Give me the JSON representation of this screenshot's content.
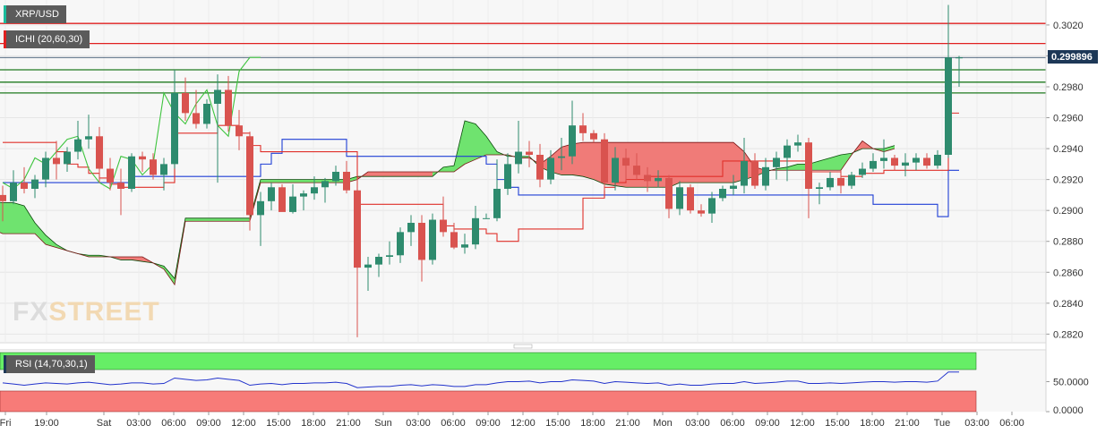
{
  "chart_data": {
    "type": "candlestick",
    "symbol": "XRP/USD",
    "indicator_label": "ICHI (20,60,30)",
    "rsi_label": "RSI (14,70,30,1)",
    "last_price_label": "0.299896",
    "last_price": 0.299896,
    "ylim": [
      0.2815,
      0.3035
    ],
    "y_ticks": [
      "0.3020",
      "0.3000",
      "0.2980",
      "0.2960",
      "0.2940",
      "0.2920",
      "0.2900",
      "0.2880",
      "0.2860",
      "0.2840",
      "0.2820"
    ],
    "rsi_ylim": [
      0,
      100
    ],
    "rsi_ticks": [
      {
        "label": "50.0000",
        "value": 50
      },
      {
        "label": "0.0000",
        "value": 0
      }
    ],
    "x_ticks": [
      "Fri",
      "19:00",
      "Sat",
      "03:00",
      "06:00",
      "09:00",
      "12:00",
      "15:00",
      "18:00",
      "21:00",
      "Sun",
      "03:00",
      "06:00",
      "09:00",
      "12:00",
      "15:00",
      "18:00",
      "21:00",
      "Mon",
      "03:00",
      "06:00",
      "09:00",
      "12:00",
      "15:00",
      "18:00",
      "21:00",
      "Tue",
      "03:00",
      "06:00"
    ],
    "horizontal_levels": {
      "resistance_red": [
        0.3021,
        0.3008
      ],
      "support_green": [
        0.2991,
        0.2983,
        0.2976
      ]
    },
    "colors": {
      "up": "#2e8b6e",
      "down": "#d9534f",
      "tenkan": "#e0302a",
      "kijun": "#1f3fd6",
      "chikou": "#3ec43e",
      "cloud_up": "#6fe36f",
      "cloud_down": "#f07b78",
      "level_red": "#e02020",
      "level_green": "#1f7a1f",
      "rsi_line": "#2233cc",
      "rsi_top": "#66ee66",
      "rsi_bottom": "#f77b78",
      "price_tag": "#1d3857"
    },
    "candles": [
      {
        "o": 0.291,
        "h": 0.2916,
        "l": 0.2893,
        "c": 0.2906
      },
      {
        "o": 0.2906,
        "h": 0.2926,
        "l": 0.2904,
        "c": 0.2918
      },
      {
        "o": 0.2918,
        "h": 0.2928,
        "l": 0.2911,
        "c": 0.2914
      },
      {
        "o": 0.2914,
        "h": 0.2923,
        "l": 0.2908,
        "c": 0.292
      },
      {
        "o": 0.292,
        "h": 0.2938,
        "l": 0.2915,
        "c": 0.2934
      },
      {
        "o": 0.2934,
        "h": 0.2945,
        "l": 0.292,
        "c": 0.293
      },
      {
        "o": 0.293,
        "h": 0.2941,
        "l": 0.2925,
        "c": 0.2938
      },
      {
        "o": 0.2938,
        "h": 0.2958,
        "l": 0.2933,
        "c": 0.2946
      },
      {
        "o": 0.2946,
        "h": 0.2962,
        "l": 0.294,
        "c": 0.2948
      },
      {
        "o": 0.2948,
        "h": 0.2954,
        "l": 0.2918,
        "c": 0.2927
      },
      {
        "o": 0.2927,
        "h": 0.2934,
        "l": 0.2913,
        "c": 0.2918
      },
      {
        "o": 0.2918,
        "h": 0.2927,
        "l": 0.2897,
        "c": 0.2914
      },
      {
        "o": 0.2914,
        "h": 0.2937,
        "l": 0.2912,
        "c": 0.2935
      },
      {
        "o": 0.2935,
        "h": 0.2938,
        "l": 0.2925,
        "c": 0.2933
      },
      {
        "o": 0.2933,
        "h": 0.2937,
        "l": 0.292,
        "c": 0.2923
      },
      {
        "o": 0.2923,
        "h": 0.2934,
        "l": 0.2913,
        "c": 0.293
      },
      {
        "o": 0.293,
        "h": 0.2991,
        "l": 0.2927,
        "c": 0.2976
      },
      {
        "o": 0.2976,
        "h": 0.2986,
        "l": 0.2958,
        "c": 0.2963
      },
      {
        "o": 0.2963,
        "h": 0.2978,
        "l": 0.2953,
        "c": 0.2956
      },
      {
        "o": 0.2956,
        "h": 0.2972,
        "l": 0.2953,
        "c": 0.2969
      },
      {
        "o": 0.2969,
        "h": 0.2988,
        "l": 0.2918,
        "c": 0.2978
      },
      {
        "o": 0.2978,
        "h": 0.2987,
        "l": 0.2951,
        "c": 0.2955
      },
      {
        "o": 0.2955,
        "h": 0.2965,
        "l": 0.2939,
        "c": 0.2948
      },
      {
        "o": 0.2948,
        "h": 0.2951,
        "l": 0.2887,
        "c": 0.2897
      },
      {
        "o": 0.2897,
        "h": 0.2912,
        "l": 0.2877,
        "c": 0.2906
      },
      {
        "o": 0.2906,
        "h": 0.2918,
        "l": 0.29,
        "c": 0.2915
      },
      {
        "o": 0.2915,
        "h": 0.2917,
        "l": 0.2901,
        "c": 0.2899
      },
      {
        "o": 0.2899,
        "h": 0.2917,
        "l": 0.2898,
        "c": 0.2909
      },
      {
        "o": 0.2909,
        "h": 0.2913,
        "l": 0.29,
        "c": 0.2911
      },
      {
        "o": 0.2911,
        "h": 0.2922,
        "l": 0.2907,
        "c": 0.2915
      },
      {
        "o": 0.2915,
        "h": 0.2921,
        "l": 0.2905,
        "c": 0.2919
      },
      {
        "o": 0.2919,
        "h": 0.2929,
        "l": 0.2916,
        "c": 0.2925
      },
      {
        "o": 0.2925,
        "h": 0.2932,
        "l": 0.2911,
        "c": 0.2913
      },
      {
        "o": 0.2913,
        "h": 0.2921,
        "l": 0.2818,
        "c": 0.2863
      },
      {
        "o": 0.2863,
        "h": 0.287,
        "l": 0.2848,
        "c": 0.2865
      },
      {
        "o": 0.2865,
        "h": 0.2872,
        "l": 0.2857,
        "c": 0.287
      },
      {
        "o": 0.287,
        "h": 0.288,
        "l": 0.2865,
        "c": 0.2871
      },
      {
        "o": 0.2871,
        "h": 0.2889,
        "l": 0.2866,
        "c": 0.2886
      },
      {
        "o": 0.2886,
        "h": 0.2897,
        "l": 0.2877,
        "c": 0.2892
      },
      {
        "o": 0.2892,
        "h": 0.2897,
        "l": 0.2854,
        "c": 0.2868
      },
      {
        "o": 0.2868,
        "h": 0.2898,
        "l": 0.2865,
        "c": 0.2894
      },
      {
        "o": 0.2894,
        "h": 0.2909,
        "l": 0.2883,
        "c": 0.2886
      },
      {
        "o": 0.2886,
        "h": 0.2892,
        "l": 0.2875,
        "c": 0.2876
      },
      {
        "o": 0.2876,
        "h": 0.2885,
        "l": 0.2872,
        "c": 0.2878
      },
      {
        "o": 0.2878,
        "h": 0.2903,
        "l": 0.2875,
        "c": 0.2895
      },
      {
        "o": 0.2895,
        "h": 0.2898,
        "l": 0.2895,
        "c": 0.2895
      },
      {
        "o": 0.2895,
        "h": 0.2933,
        "l": 0.2893,
        "c": 0.2914
      },
      {
        "o": 0.2914,
        "h": 0.2937,
        "l": 0.291,
        "c": 0.293
      },
      {
        "o": 0.293,
        "h": 0.2958,
        "l": 0.2924,
        "c": 0.2938
      },
      {
        "o": 0.2938,
        "h": 0.2945,
        "l": 0.2928,
        "c": 0.2936
      },
      {
        "o": 0.2936,
        "h": 0.2943,
        "l": 0.2915,
        "c": 0.292
      },
      {
        "o": 0.292,
        "h": 0.2939,
        "l": 0.2917,
        "c": 0.2934
      },
      {
        "o": 0.2934,
        "h": 0.2947,
        "l": 0.2926,
        "c": 0.2935
      },
      {
        "o": 0.2935,
        "h": 0.2971,
        "l": 0.293,
        "c": 0.2955
      },
      {
        "o": 0.2955,
        "h": 0.2963,
        "l": 0.2945,
        "c": 0.295
      },
      {
        "o": 0.295,
        "h": 0.2952,
        "l": 0.2944,
        "c": 0.2946
      },
      {
        "o": 0.2946,
        "h": 0.295,
        "l": 0.2913,
        "c": 0.2918
      },
      {
        "o": 0.2918,
        "h": 0.2941,
        "l": 0.2913,
        "c": 0.2934
      },
      {
        "o": 0.2934,
        "h": 0.294,
        "l": 0.2919,
        "c": 0.2929
      },
      {
        "o": 0.2929,
        "h": 0.2937,
        "l": 0.292,
        "c": 0.2923
      },
      {
        "o": 0.2923,
        "h": 0.2928,
        "l": 0.2912,
        "c": 0.2919
      },
      {
        "o": 0.2919,
        "h": 0.2926,
        "l": 0.2915,
        "c": 0.2921
      },
      {
        "o": 0.2921,
        "h": 0.2923,
        "l": 0.2895,
        "c": 0.2901
      },
      {
        "o": 0.2901,
        "h": 0.2919,
        "l": 0.2897,
        "c": 0.2915
      },
      {
        "o": 0.2915,
        "h": 0.2917,
        "l": 0.2898,
        "c": 0.29
      },
      {
        "o": 0.29,
        "h": 0.2904,
        "l": 0.2896,
        "c": 0.2898
      },
      {
        "o": 0.2898,
        "h": 0.2912,
        "l": 0.2892,
        "c": 0.2908
      },
      {
        "o": 0.2908,
        "h": 0.2916,
        "l": 0.2906,
        "c": 0.2914
      },
      {
        "o": 0.2914,
        "h": 0.2923,
        "l": 0.291,
        "c": 0.2916
      },
      {
        "o": 0.2916,
        "h": 0.2947,
        "l": 0.2911,
        "c": 0.2932
      },
      {
        "o": 0.2932,
        "h": 0.2937,
        "l": 0.2914,
        "c": 0.2916
      },
      {
        "o": 0.2916,
        "h": 0.2934,
        "l": 0.2913,
        "c": 0.2928
      },
      {
        "o": 0.2928,
        "h": 0.2938,
        "l": 0.292,
        "c": 0.2934
      },
      {
        "o": 0.2934,
        "h": 0.2946,
        "l": 0.2919,
        "c": 0.2942
      },
      {
        "o": 0.2942,
        "h": 0.2949,
        "l": 0.2938,
        "c": 0.2944
      },
      {
        "o": 0.2944,
        "h": 0.2947,
        "l": 0.2895,
        "c": 0.2914
      },
      {
        "o": 0.2914,
        "h": 0.2918,
        "l": 0.2904,
        "c": 0.2915
      },
      {
        "o": 0.2915,
        "h": 0.2925,
        "l": 0.2913,
        "c": 0.2921
      },
      {
        "o": 0.2921,
        "h": 0.2926,
        "l": 0.2911,
        "c": 0.2916
      },
      {
        "o": 0.2916,
        "h": 0.2925,
        "l": 0.2914,
        "c": 0.2923
      },
      {
        "o": 0.2923,
        "h": 0.2931,
        "l": 0.2921,
        "c": 0.2927
      },
      {
        "o": 0.2927,
        "h": 0.2937,
        "l": 0.2925,
        "c": 0.2932
      },
      {
        "o": 0.2932,
        "h": 0.2946,
        "l": 0.2927,
        "c": 0.2934
      },
      {
        "o": 0.2934,
        "h": 0.2936,
        "l": 0.2926,
        "c": 0.2929
      },
      {
        "o": 0.2929,
        "h": 0.2937,
        "l": 0.2922,
        "c": 0.2931
      },
      {
        "o": 0.2931,
        "h": 0.2937,
        "l": 0.2926,
        "c": 0.2934
      },
      {
        "o": 0.2934,
        "h": 0.2937,
        "l": 0.2927,
        "c": 0.2929
      },
      {
        "o": 0.2929,
        "h": 0.2939,
        "l": 0.2927,
        "c": 0.2936
      },
      {
        "o": 0.2936,
        "h": 0.3033,
        "l": 0.2934,
        "c": 0.2999
      },
      {
        "o": 0.2999,
        "h": 0.3,
        "l": 0.298,
        "c": 0.2999
      }
    ],
    "tenkan": [
      0.2944,
      0.2944,
      0.2944,
      0.2944,
      0.2944,
      0.2938,
      0.293,
      0.2928,
      0.2924,
      0.2921,
      0.2917,
      0.2915,
      0.2915,
      0.2915,
      0.2915,
      0.2918,
      0.295,
      0.295,
      0.295,
      0.295,
      0.2955,
      0.2955,
      0.295,
      0.2942,
      0.2938,
      0.2938,
      0.2938,
      0.2938,
      0.2938,
      0.2938,
      0.2938,
      0.2938,
      0.2938,
      0.2904,
      0.2904,
      0.2904,
      0.2904,
      0.2904,
      0.2904,
      0.2904,
      0.2904,
      0.289,
      0.2888,
      0.2888,
      0.2888,
      0.2885,
      0.288,
      0.288,
      0.2888,
      0.2888,
      0.2888,
      0.2888,
      0.2888,
      0.2888,
      0.2908,
      0.2908,
      0.2915,
      0.2918,
      0.292,
      0.292,
      0.2922,
      0.2922,
      0.2922,
      0.2922,
      0.2922,
      0.2922,
      0.2922,
      0.2932,
      0.2932,
      0.2932,
      0.2932,
      0.2932,
      0.2932,
      0.2932,
      0.2932,
      0.2925,
      0.2925,
      0.2925,
      0.2922,
      0.2922,
      0.2924,
      0.2924,
      0.2926,
      0.2926,
      0.2926,
      0.2926,
      0.2926,
      0.2926,
      0.2963,
      0.2963
    ],
    "kijun": [
      0.2918,
      0.2918,
      0.2918,
      0.2918,
      0.2918,
      0.2918,
      0.2918,
      0.2918,
      0.2918,
      0.2918,
      0.2918,
      0.2918,
      0.2922,
      0.2922,
      0.2922,
      0.2922,
      0.2922,
      0.2922,
      0.2922,
      0.2922,
      0.2922,
      0.2922,
      0.2922,
      0.2922,
      0.293,
      0.2937,
      0.2946,
      0.2946,
      0.2946,
      0.2946,
      0.2946,
      0.2946,
      0.2935,
      0.2935,
      0.2935,
      0.2935,
      0.2935,
      0.2935,
      0.2935,
      0.2935,
      0.2935,
      0.2935,
      0.2935,
      0.2935,
      0.2935,
      0.293,
      0.292,
      0.2915,
      0.291,
      0.291,
      0.291,
      0.291,
      0.291,
      0.291,
      0.291,
      0.291,
      0.291,
      0.291,
      0.291,
      0.291,
      0.291,
      0.291,
      0.291,
      0.291,
      0.291,
      0.291,
      0.291,
      0.291,
      0.291,
      0.291,
      0.291,
      0.291,
      0.291,
      0.291,
      0.291,
      0.291,
      0.291,
      0.291,
      0.291,
      0.291,
      0.291,
      0.2904,
      0.2904,
      0.2904,
      0.2904,
      0.2904,
      0.2904,
      0.2896,
      0.2926,
      0.2926
    ],
    "chikou": [
      0.2918,
      0.2914,
      0.292,
      0.2934,
      0.293,
      0.2938,
      0.2946,
      0.2948,
      0.2927,
      0.2918,
      0.2914,
      0.2935,
      0.2933,
      0.2923,
      0.293,
      0.2976,
      0.2963,
      0.2956,
      0.2969,
      0.2978,
      0.2955,
      0.2948,
      0.299,
      0.2999,
      0.2999
    ],
    "senkou_a": [
      0.292,
      0.2917,
      0.291,
      0.2908,
      0.2907,
      0.2906,
      0.2905,
      0.2905,
      0.2903,
      0.2892,
      0.2884,
      0.2878,
      0.2874,
      0.2872,
      0.2871,
      0.2871,
      0.287,
      0.2868,
      0.2868,
      0.2867,
      0.2866,
      0.2864,
      0.2856,
      0.2895,
      0.2895,
      0.2895,
      0.2895,
      0.2895,
      0.2895,
      0.2895,
      0.292,
      0.292,
      0.292,
      0.292,
      0.292,
      0.292,
      0.292,
      0.292,
      0.292,
      0.2922,
      0.2922,
      0.2922,
      0.2922,
      0.2922,
      0.2922,
      0.2922,
      0.2922,
      0.2928,
      0.2929,
      0.2958,
      0.2956,
      0.2948,
      0.2938,
      0.2935,
      0.2935,
      0.2935,
      0.2928,
      0.2925,
      0.2923,
      0.2923,
      0.2922,
      0.292,
      0.2917,
      0.2916,
      0.2915,
      0.2915,
      0.2915,
      0.2915,
      0.2915,
      0.2918,
      0.2918,
      0.2918,
      0.2918,
      0.2918,
      0.2918,
      0.292,
      0.2922,
      0.2925,
      0.2927,
      0.2928,
      0.293,
      0.293,
      0.2932,
      0.2934,
      0.2936,
      0.2937,
      0.294,
      0.294,
      0.294,
      0.2942
    ],
    "senkou_b": [
      0.292,
      0.2915,
      0.2908,
      0.29,
      0.2893,
      0.2888,
      0.2885,
      0.2885,
      0.2885,
      0.2885,
      0.2878,
      0.2876,
      0.2874,
      0.2872,
      0.287,
      0.287,
      0.287,
      0.287,
      0.287,
      0.287,
      0.2866,
      0.2862,
      0.2852,
      0.2893,
      0.2893,
      0.2893,
      0.2893,
      0.2893,
      0.2893,
      0.2893,
      0.2918,
      0.2918,
      0.2918,
      0.2918,
      0.2918,
      0.2918,
      0.2918,
      0.2918,
      0.2918,
      0.292,
      0.2925,
      0.2925,
      0.2925,
      0.2925,
      0.2925,
      0.2925,
      0.2925,
      0.2925,
      0.2925,
      0.293,
      0.2933,
      0.2936,
      0.2936,
      0.2936,
      0.2934,
      0.2934,
      0.293,
      0.2935,
      0.2941,
      0.2943,
      0.2944,
      0.2944,
      0.2944,
      0.2944,
      0.2944,
      0.2944,
      0.2944,
      0.2944,
      0.2944,
      0.2944,
      0.2944,
      0.2944,
      0.2944,
      0.2944,
      0.2944,
      0.2938,
      0.2928,
      0.2926,
      0.2926,
      0.2926,
      0.2926,
      0.2926,
      0.2926,
      0.2926,
      0.2926,
      0.2936,
      0.2945,
      0.294,
      0.2938,
      0.294
    ],
    "rsi": [
      48,
      46,
      44,
      46,
      48,
      47,
      46,
      48,
      49,
      47,
      45,
      46,
      48,
      48,
      46,
      47,
      56,
      54,
      52,
      53,
      56,
      54,
      52,
      44,
      46,
      47,
      45,
      47,
      47,
      48,
      48,
      49,
      47,
      40,
      41,
      42,
      42,
      44,
      45,
      43,
      45,
      44,
      42,
      42,
      45,
      45,
      48,
      50,
      50,
      51,
      48,
      50,
      50,
      53,
      52,
      51,
      47,
      50,
      49,
      48,
      47,
      48,
      44,
      46,
      44,
      44,
      46,
      47,
      47,
      50,
      47,
      48,
      49,
      51,
      51,
      47,
      47,
      48,
      47,
      48,
      49,
      50,
      50,
      49,
      50,
      50,
      49,
      51,
      66,
      66
    ]
  }
}
